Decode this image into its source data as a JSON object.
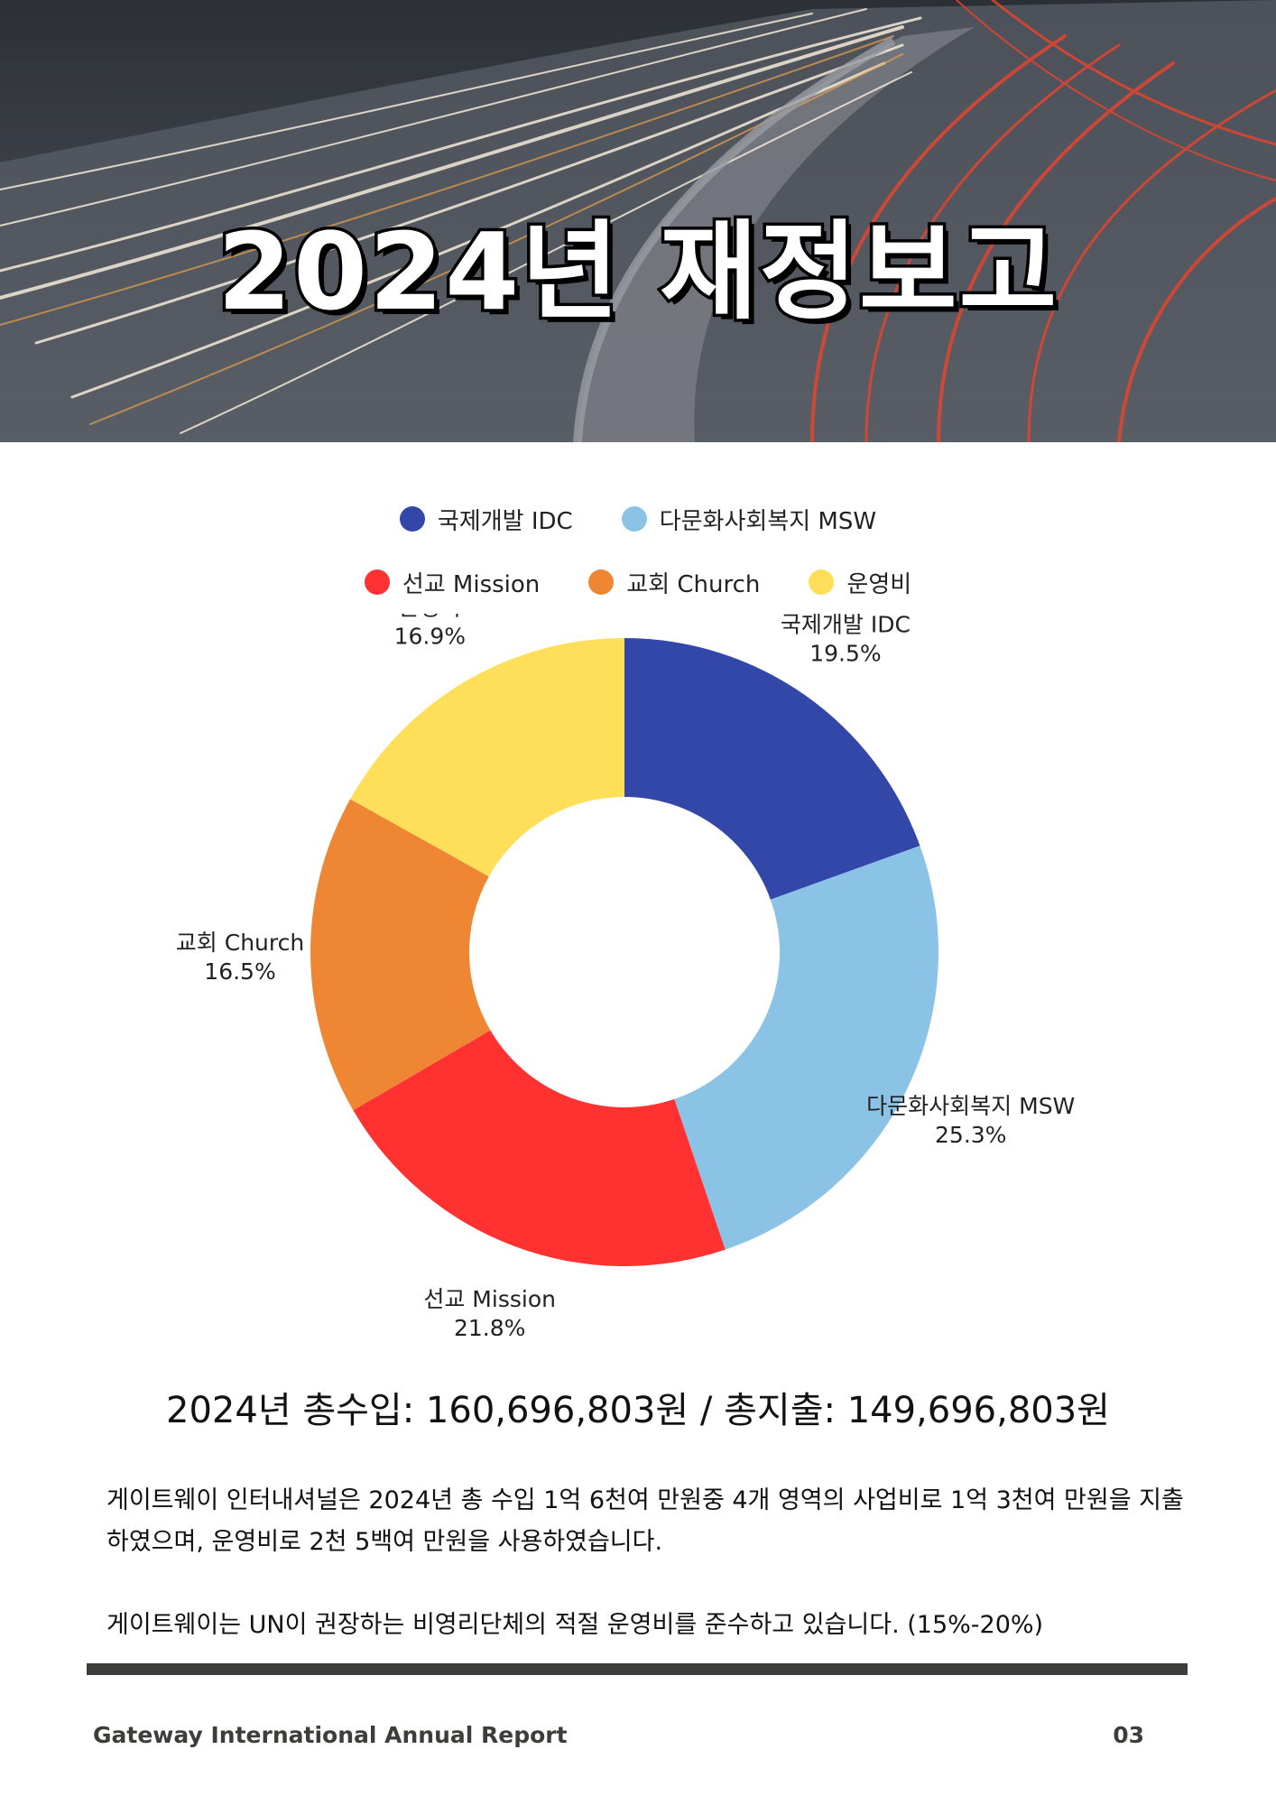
{
  "hero": {
    "title": "2024년 재정보고"
  },
  "legend": {
    "row1": [
      {
        "label": "국제개발 IDC",
        "color": "#3347a8"
      },
      {
        "label": "다문화사회복지 MSW",
        "color": "#8bc3e6"
      }
    ],
    "row2": [
      {
        "label": "선교 Mission",
        "color": "#ff3131"
      },
      {
        "label": "교회 Church",
        "color": "#ef8634"
      },
      {
        "label": "운영비",
        "color": "#ffde59"
      }
    ]
  },
  "chart_data": {
    "type": "pie",
    "variant": "donut",
    "categories": [
      "국제개발 IDC",
      "다문화사회복지 MSW",
      "선교 Mission",
      "교회 Church",
      "운영비"
    ],
    "values": [
      19.5,
      25.3,
      21.8,
      16.5,
      16.9
    ],
    "value_labels": [
      "19.5%",
      "25.3%",
      "21.8%",
      "16.5%",
      "16.9%"
    ],
    "colors": [
      "#3347a8",
      "#8bc3e6",
      "#ff3131",
      "#ef8634",
      "#ffde59"
    ],
    "legend_position": "top"
  },
  "summary": {
    "totals": "2024년 총수입: 160,696,803원 / 총지출: 149,696,803원",
    "paragraph1": "게이트웨이 인터내셔널은 2024년 총 수입 1억 6천여 만원중 4개 영역의 사업비로 1억 3천여 만원을 지출하였으며, 운영비로 2천 5백여 만원을 사용하였습니다.",
    "paragraph2": "게이트웨이는 UN이 권장하는 비영리단체의 적절 운영비를 준수하고 있습니다. (15%-20%)"
  },
  "footer": {
    "title": "Gateway International Annual Report",
    "page_number": "03"
  }
}
